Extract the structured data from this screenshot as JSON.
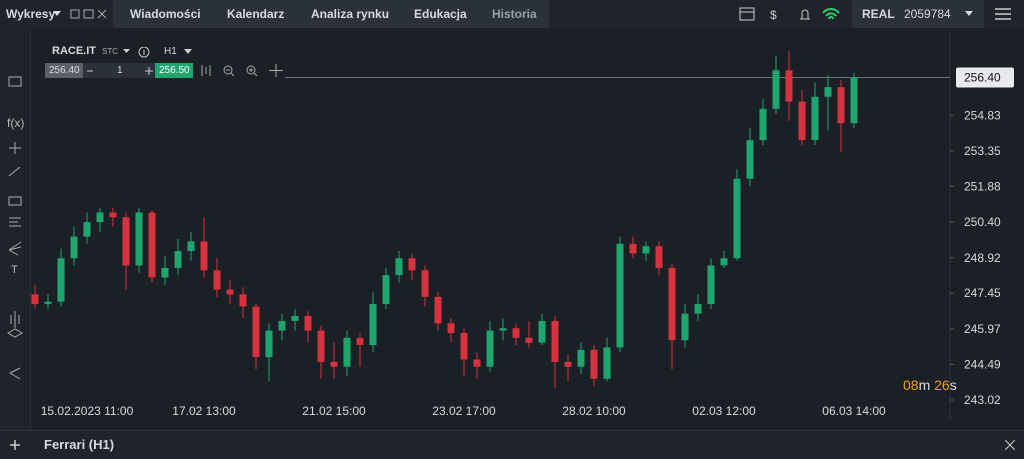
{
  "top_bar": {
    "menu": "Wykresy",
    "tabs": [
      "Wiadomości",
      "Kalendarz",
      "Analiza rynku",
      "Edukacja",
      "Historia"
    ],
    "account_type": "REAL",
    "account_number": "2059784"
  },
  "toolbar": {
    "symbol": "RACE.IT",
    "symbol_type": "STC",
    "timeframe": "H1",
    "bid": "256.40",
    "volume": "1",
    "ask": "256.50"
  },
  "side_tools": {
    "function": "f(x)",
    "text": "T"
  },
  "timer": {
    "minutes": "08",
    "minutes_unit": "m",
    "seconds": "26",
    "seconds_unit": "s"
  },
  "bottom_bar": {
    "title": "Ferrari (H1)"
  },
  "chart_data": {
    "type": "candlestick",
    "up_color": "#1fa56e",
    "down_color": "#d8323e",
    "ylim": [
      242.19,
      258.37
    ],
    "yticks": [
      {
        "value": 243.02,
        "label": "243.02"
      },
      {
        "value": 244.49,
        "label": "244.49"
      },
      {
        "value": 245.97,
        "label": "245.97"
      },
      {
        "value": 247.45,
        "label": "247.45"
      },
      {
        "value": 248.92,
        "label": "248.92"
      },
      {
        "value": 250.4,
        "label": "250.40"
      },
      {
        "value": 251.88,
        "label": "251.88"
      },
      {
        "value": 253.35,
        "label": "253.35"
      },
      {
        "value": 254.83,
        "label": "254.83"
      }
    ],
    "price_line": {
      "value": 256.4,
      "label": "256.40"
    },
    "categories": [
      null,
      null,
      null,
      null,
      "15.02.2023 11:00",
      null,
      null,
      null,
      null,
      null,
      null,
      null,
      null,
      "17.02 13:00",
      null,
      null,
      null,
      null,
      null,
      null,
      null,
      null,
      null,
      "21.02 15:00",
      null,
      null,
      null,
      null,
      null,
      null,
      null,
      null,
      null,
      "23.02 17:00",
      null,
      null,
      null,
      null,
      null,
      null,
      null,
      null,
      null,
      "28.02 10:00",
      null,
      null,
      null,
      null,
      null,
      null,
      null,
      null,
      null,
      "02.03 12:00",
      null,
      null,
      null,
      null,
      null,
      null,
      null,
      null,
      null,
      "06.03 14:00"
    ],
    "open": [
      247.4,
      247.0,
      247.1,
      248.9,
      249.8,
      250.4,
      250.8,
      250.6,
      248.6,
      250.8,
      248.1,
      248.5,
      249.2,
      249.6,
      248.4,
      247.6,
      247.4,
      246.9,
      244.8,
      245.9,
      246.3,
      246.5,
      245.9,
      244.6,
      244.4,
      245.6,
      245.3,
      247.0,
      248.2,
      248.9,
      248.4,
      247.3,
      246.2,
      245.8,
      244.7,
      244.4,
      245.9,
      246.0,
      245.6,
      245.4,
      246.3,
      244.6,
      244.4,
      245.1,
      243.9,
      245.2,
      249.5,
      249.1,
      249.4,
      248.5,
      245.5,
      246.6,
      247.0,
      248.6,
      248.9,
      252.2,
      253.8,
      255.1,
      256.7,
      255.4,
      253.8,
      255.6,
      256.0,
      254.5
    ],
    "high": [
      247.8,
      247.4,
      249.3,
      250.2,
      250.8,
      251.0,
      251.0,
      250.8,
      251.0,
      250.9,
      249.0,
      249.7,
      250.0,
      250.6,
      248.9,
      248.0,
      247.7,
      247.0,
      246.2,
      246.6,
      246.8,
      246.7,
      246.1,
      245.4,
      245.9,
      245.8,
      247.5,
      248.5,
      249.2,
      249.1,
      248.6,
      247.5,
      246.4,
      246.0,
      245.0,
      246.3,
      246.4,
      246.2,
      246.3,
      246.6,
      246.5,
      244.9,
      245.4,
      245.3,
      245.6,
      249.8,
      249.8,
      249.6,
      249.6,
      248.7,
      247.0,
      247.4,
      248.9,
      249.2,
      252.6,
      254.3,
      255.5,
      257.3,
      257.5,
      255.9,
      256.2,
      256.5,
      256.3,
      256.6
    ],
    "low": [
      246.8,
      246.8,
      246.9,
      248.6,
      249.5,
      250.0,
      250.2,
      247.6,
      248.3,
      247.9,
      247.8,
      248.2,
      248.8,
      248.1,
      247.3,
      247.0,
      246.4,
      244.3,
      243.8,
      245.5,
      245.9,
      245.4,
      243.9,
      243.9,
      244.0,
      244.4,
      245.0,
      246.8,
      247.9,
      248.0,
      246.9,
      245.9,
      245.4,
      244.0,
      243.9,
      244.2,
      245.5,
      245.3,
      245.2,
      245.3,
      243.5,
      243.8,
      244.1,
      243.6,
      243.8,
      245.0,
      248.9,
      248.8,
      248.2,
      244.3,
      245.2,
      246.3,
      246.8,
      248.5,
      248.8,
      251.9,
      253.6,
      254.9,
      254.6,
      253.6,
      253.6,
      254.2,
      253.3,
      254.3
    ],
    "close": [
      247.0,
      247.1,
      248.9,
      249.8,
      250.4,
      250.8,
      250.6,
      248.6,
      250.8,
      248.1,
      248.5,
      249.2,
      249.6,
      248.4,
      247.6,
      247.4,
      246.9,
      244.8,
      245.9,
      246.3,
      246.5,
      245.9,
      244.6,
      244.4,
      245.6,
      245.3,
      247.0,
      248.2,
      248.9,
      248.4,
      247.3,
      246.2,
      245.8,
      244.7,
      244.4,
      245.9,
      246.0,
      245.6,
      245.4,
      246.3,
      244.6,
      244.4,
      245.1,
      243.9,
      245.2,
      249.5,
      249.1,
      249.4,
      248.5,
      245.5,
      246.6,
      247.0,
      248.6,
      248.9,
      252.2,
      253.8,
      255.1,
      256.7,
      255.4,
      253.8,
      255.6,
      256.0,
      254.5,
      256.4
    ]
  }
}
